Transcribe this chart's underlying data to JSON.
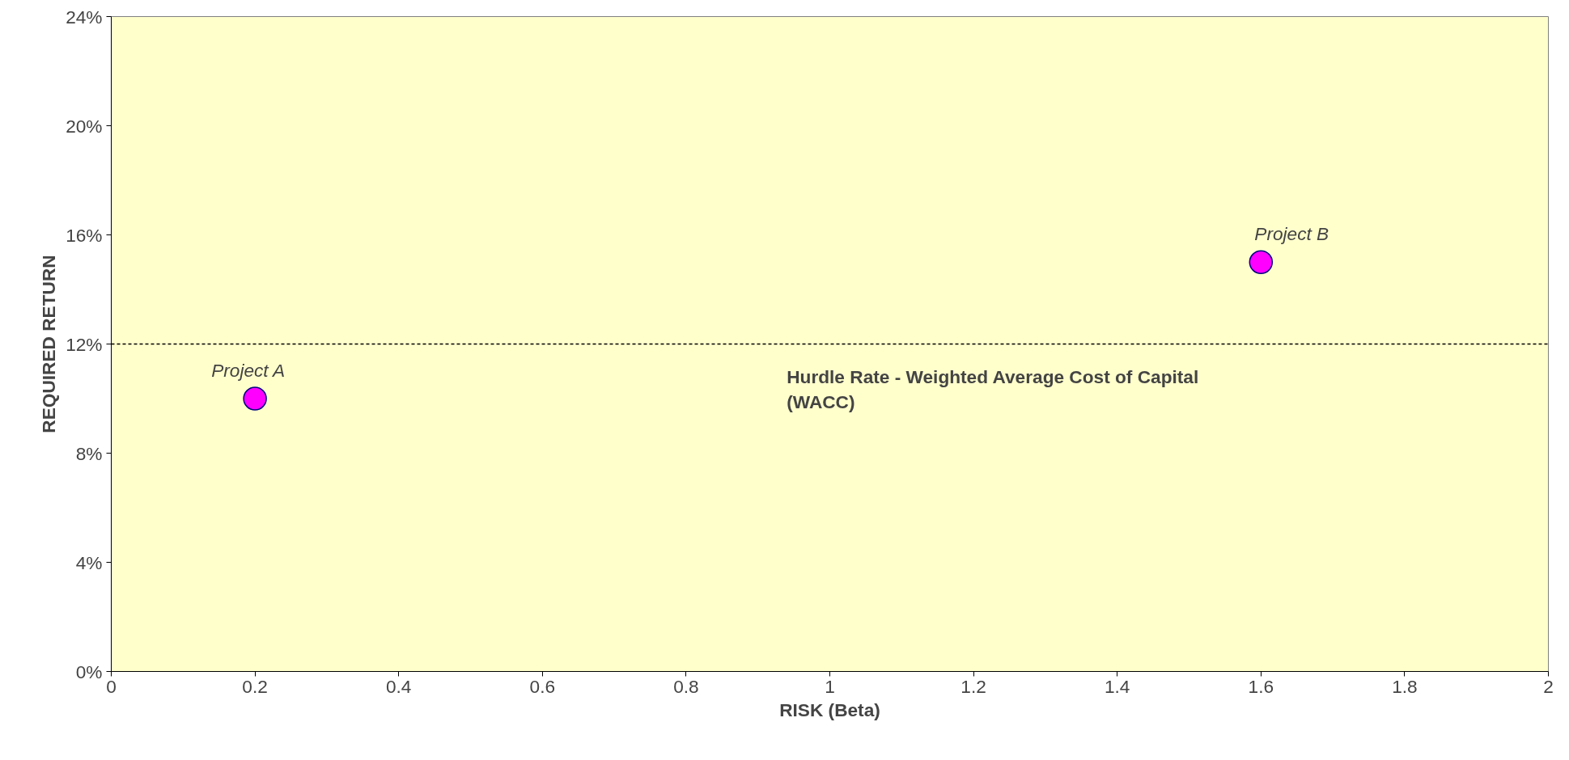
{
  "chart_data": {
    "type": "scatter",
    "xlabel": "RISK (Beta)",
    "ylabel": "REQUIRED RETURN",
    "x": [
      0.2,
      1.6
    ],
    "series": [
      {
        "color": "#ff00ff",
        "values": [
          10,
          15
        ]
      }
    ],
    "marker": "circle",
    "grid": false,
    "xlim": [
      0,
      2
    ],
    "xticks": [
      0,
      0.2,
      0.4,
      0.6,
      0.8,
      1,
      1.2,
      1.4,
      1.6,
      1.8,
      2
    ],
    "ylim": [
      0,
      24
    ],
    "yticks": [
      {
        "value": 0,
        "label": "0%"
      },
      {
        "value": 4,
        "label": "4%"
      },
      {
        "value": 8,
        "label": "8%"
      },
      {
        "value": 12,
        "label": "12%"
      },
      {
        "value": 16,
        "label": "16%"
      },
      {
        "value": 20,
        "label": "20%"
      },
      {
        "value": 24,
        "label": "24%"
      }
    ],
    "ref_lines": [
      {
        "axis": "y",
        "value": 12,
        "label": "Hurdle Rate - Weighted Average Cost of Capital\n(WACC)",
        "color": "#000000",
        "line_style": "dashed"
      }
    ],
    "annotations": [
      {
        "text": "Project A",
        "x": 0.2,
        "y": 10
      },
      {
        "text": "Project B",
        "x": 1.6,
        "y": 15
      }
    ]
  }
}
